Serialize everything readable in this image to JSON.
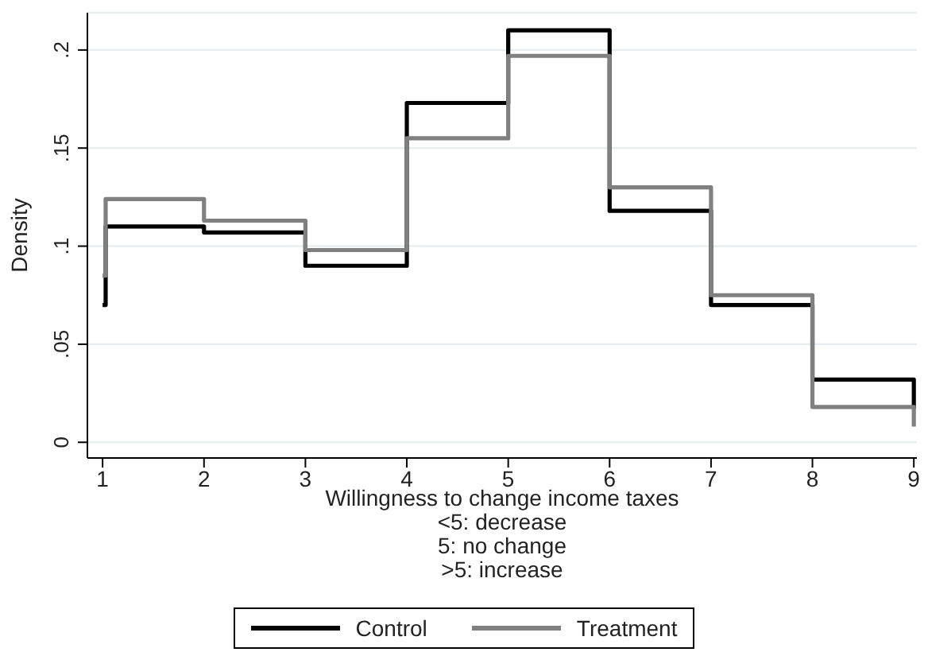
{
  "chart_data": {
    "type": "step",
    "xlabel": "Willingness to change income taxes\n<5: decrease\n5: no change\n>5: increase",
    "ylabel": "Density",
    "series": [
      {
        "name": "Control",
        "color": "#000000",
        "x": [
          1,
          1.03,
          2,
          3,
          4,
          5,
          6,
          7,
          8,
          9
        ],
        "values": [
          0.07,
          0.11,
          0.107,
          0.09,
          0.173,
          0.21,
          0.118,
          0.07,
          0.032,
          0.017
        ]
      },
      {
        "name": "Treatment",
        "color": "#808080",
        "x": [
          1,
          1.03,
          2,
          3,
          4,
          5,
          6,
          7,
          8,
          9
        ],
        "values": [
          0.085,
          0.124,
          0.113,
          0.098,
          0.155,
          0.197,
          0.13,
          0.075,
          0.018,
          0.008
        ]
      }
    ],
    "xlim": [
      0.85,
      9.03
    ],
    "xticks": [
      1,
      2,
      3,
      4,
      5,
      6,
      7,
      8,
      9
    ],
    "ylim": [
      -0.008,
      0.219
    ],
    "yticks": [
      0,
      {
        "value": 0.05,
        "label": ".05"
      },
      {
        "value": 0.1,
        "label": ".1"
      },
      {
        "value": 0.15,
        "label": ".15"
      },
      {
        "value": 0.2,
        "label": ".2"
      }
    ],
    "grid": "y",
    "legend": "bottom",
    "line_style": "solid",
    "marker": "none"
  }
}
